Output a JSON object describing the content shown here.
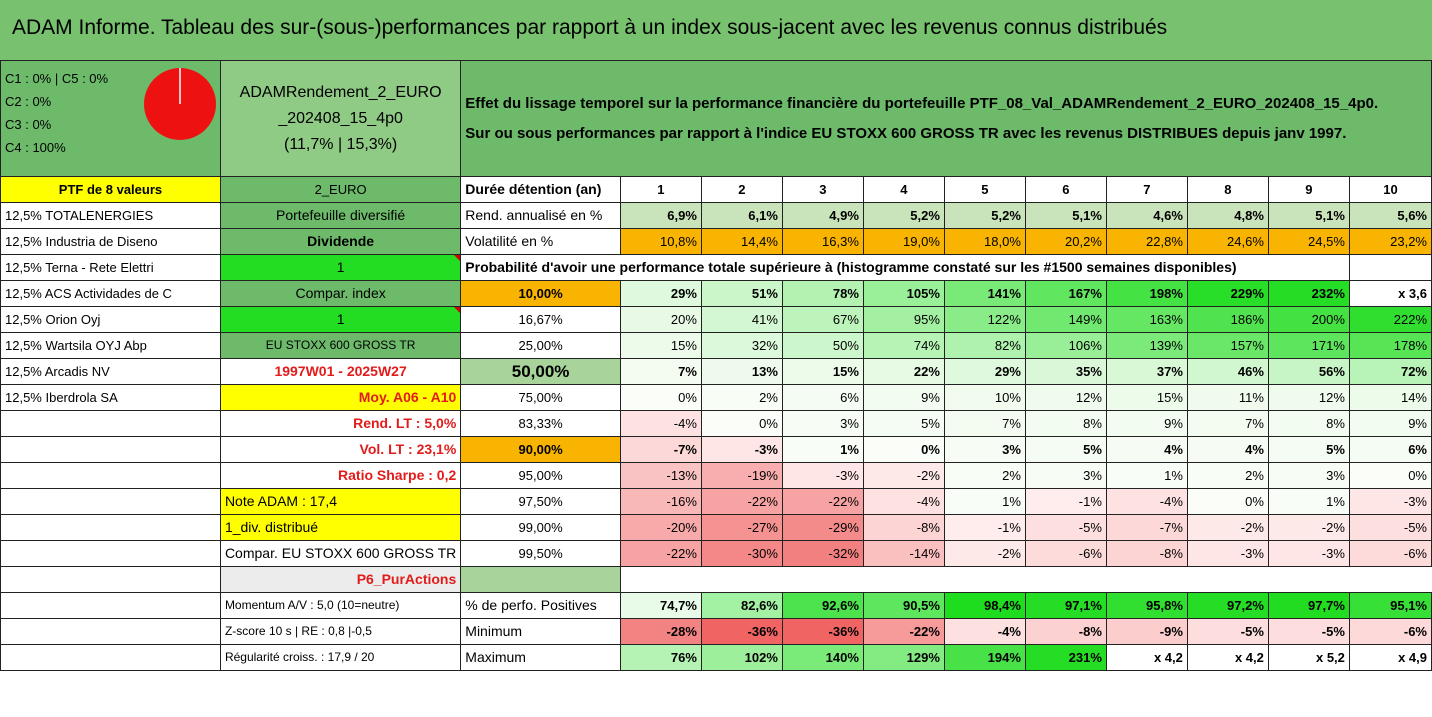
{
  "title": "ADAM Informe. Tableau des sur-(sous-)performances par rapport à un index sous-jacent avec les revenus connus distribués",
  "info": {
    "alloc": [
      "C1 : 0% | C5 : 0%",
      "C2 : 0%",
      "C3 : 0%",
      "C4 : 100%"
    ],
    "fund_line1": "ADAMRendement_2_EURO",
    "fund_line2": "_202408_15_4p0",
    "fund_line3": "(11,7% | 15,3%)",
    "desc_line1": "Effet du lissage temporel sur la performance financière du portefeuille PTF_08_Val_ADAMRendement_2_EURO_202408_15_4p0.",
    "desc_line2": "Sur ou sous performances par rapport à l'indice EU STOXX 600 GROSS TR avec les revenus DISTRIBUES depuis janv 1997."
  },
  "holdings": [
    "12,5% TOTALENERGIES",
    "12,5% Industria de Diseno",
    "12,5% Terna - Rete Elettri",
    "12,5% ACS Actividades de C",
    "12,5% Orion Oyj",
    "12,5% Wartsila OYJ Abp",
    "12,5% Arcadis NV",
    "12,5% Iberdrola SA"
  ],
  "ptf_label": "PTF de 8 valeurs",
  "mid": {
    "euro": "2_EURO",
    "diversifie": "Portefeuille diversifié",
    "dividende": "Dividende",
    "one_a": "1",
    "compar_index": "Compar. index",
    "one_b": "1",
    "index_name": "EU STOXX 600 GROSS TR",
    "period": "1997W01 - 2025W27",
    "moy": "Moy. A06 - A10",
    "rend_lt": "Rend. LT : 5,0%",
    "vol_lt": "Vol. LT : 23,1%",
    "sharpe": "Ratio Sharpe : 0,2",
    "note": "Note ADAM : 17,4",
    "div": "1_div. distribué",
    "compar_eu": "Compar. EU STOXX 600 GROSS TR",
    "p6": "P6_PurActions",
    "momentum": "Momentum A/V : 5,0 (10=neutre)",
    "zscore": "Z-score 10 s | RE : 0,8 |-0,5",
    "regularite": "Régularité croiss. : 17,9 / 20"
  },
  "labels": {
    "duree": "Durée détention (an)",
    "rend": "Rend. annualisé en %",
    "vol": "Volatilité en %",
    "proba": "Probabilité d'avoir une performance totale supérieure à (histogramme constaté sur les #1500 semaines disponibles)",
    "positives": "% de perfo. Positives",
    "minimum": "Minimum",
    "maximum": "Maximum"
  },
  "years": [
    "1",
    "2",
    "3",
    "4",
    "5",
    "6",
    "7",
    "8",
    "9",
    "10"
  ],
  "rend": [
    "6,9%",
    "6,1%",
    "4,9%",
    "5,2%",
    "5,2%",
    "5,1%",
    "4,6%",
    "4,8%",
    "5,1%",
    "5,6%"
  ],
  "vol": [
    "10,8%",
    "14,4%",
    "16,3%",
    "19,0%",
    "18,0%",
    "20,2%",
    "22,8%",
    "24,6%",
    "24,5%",
    "23,2%"
  ],
  "quantiles": [
    {
      "q": "10,00%",
      "vals": [
        "29%",
        "51%",
        "78%",
        "105%",
        "141%",
        "167%",
        "198%",
        "229%",
        "232%",
        "x 3,6"
      ]
    },
    {
      "q": "16,67%",
      "vals": [
        "20%",
        "41%",
        "67%",
        "95%",
        "122%",
        "149%",
        "163%",
        "186%",
        "200%",
        "222%"
      ]
    },
    {
      "q": "25,00%",
      "vals": [
        "15%",
        "32%",
        "50%",
        "74%",
        "82%",
        "106%",
        "139%",
        "157%",
        "171%",
        "178%"
      ]
    },
    {
      "q": "50,00%",
      "vals": [
        "7%",
        "13%",
        "15%",
        "22%",
        "29%",
        "35%",
        "37%",
        "46%",
        "56%",
        "72%"
      ]
    },
    {
      "q": "75,00%",
      "vals": [
        "0%",
        "2%",
        "6%",
        "9%",
        "10%",
        "12%",
        "15%",
        "11%",
        "12%",
        "14%"
      ]
    },
    {
      "q": "83,33%",
      "vals": [
        "-4%",
        "0%",
        "3%",
        "5%",
        "7%",
        "8%",
        "9%",
        "7%",
        "8%",
        "9%"
      ]
    },
    {
      "q": "90,00%",
      "vals": [
        "-7%",
        "-3%",
        "1%",
        "0%",
        "3%",
        "5%",
        "4%",
        "4%",
        "5%",
        "6%"
      ]
    },
    {
      "q": "95,00%",
      "vals": [
        "-13%",
        "-19%",
        "-3%",
        "-2%",
        "2%",
        "3%",
        "1%",
        "2%",
        "3%",
        "0%"
      ]
    },
    {
      "q": "97,50%",
      "vals": [
        "-16%",
        "-22%",
        "-22%",
        "-4%",
        "1%",
        "-1%",
        "-4%",
        "0%",
        "1%",
        "-3%"
      ]
    },
    {
      "q": "99,00%",
      "vals": [
        "-20%",
        "-27%",
        "-29%",
        "-8%",
        "-1%",
        "-5%",
        "-7%",
        "-2%",
        "-2%",
        "-5%"
      ]
    },
    {
      "q": "99,50%",
      "vals": [
        "-22%",
        "-30%",
        "-32%",
        "-14%",
        "-2%",
        "-6%",
        "-8%",
        "-3%",
        "-3%",
        "-6%"
      ]
    }
  ],
  "positives": [
    "74,7%",
    "82,6%",
    "92,6%",
    "90,5%",
    "98,4%",
    "97,1%",
    "95,8%",
    "97,2%",
    "97,7%",
    "95,1%"
  ],
  "minimum": [
    "-28%",
    "-36%",
    "-36%",
    "-22%",
    "-4%",
    "-8%",
    "-9%",
    "-5%",
    "-5%",
    "-6%"
  ],
  "maximum": [
    "76%",
    "102%",
    "140%",
    "129%",
    "194%",
    "231%",
    "x 4,2",
    "x 4,2",
    "x 5,2",
    "x 4,9"
  ],
  "colors": {
    "green": "#6dbb6a",
    "yellow": "#ffff00",
    "orange": "#f8b400",
    "pie": "#ee1111",
    "brightgreen": "#22dd22"
  }
}
